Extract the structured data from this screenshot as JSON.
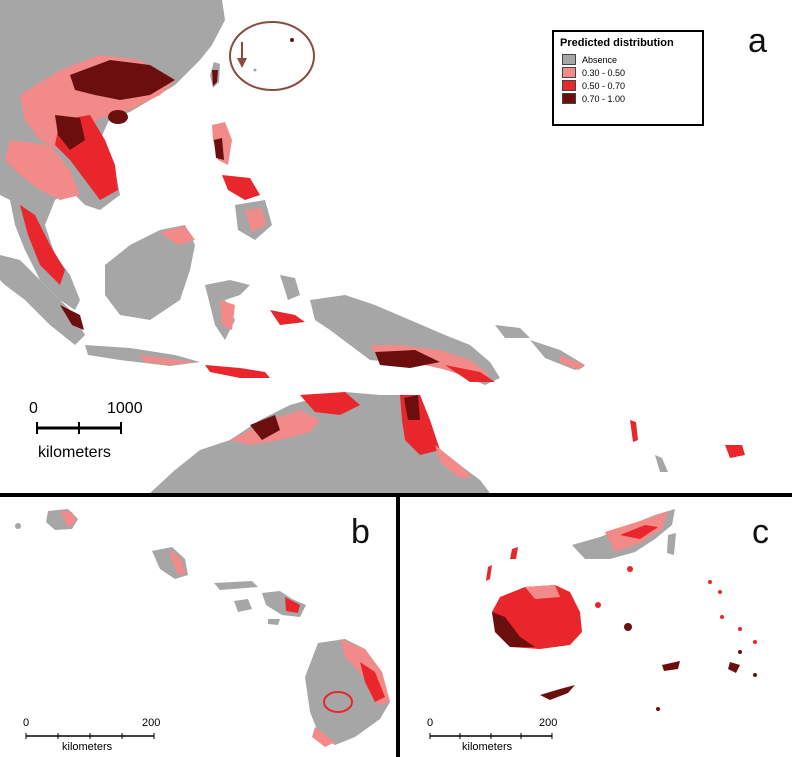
{
  "panels": {
    "a": {
      "letter": "a"
    },
    "b": {
      "letter": "b"
    },
    "c": {
      "letter": "c"
    }
  },
  "legend": {
    "title": "Predicted distribution",
    "items": [
      {
        "label": "Absence",
        "color": "#a6a6a6"
      },
      {
        "label": "0.30 - 0.50",
        "color": "#f28a8a"
      },
      {
        "label": "0.50 - 0.70",
        "color": "#e8262b"
      },
      {
        "label": "0.70 - 1.00",
        "color": "#6b0e0e"
      }
    ]
  },
  "scalebars": {
    "a": {
      "start": "0",
      "end": "1000",
      "unit": "kilometers"
    },
    "b": {
      "start": "0",
      "end": "200",
      "unit": "kilometers"
    },
    "c": {
      "start": "0",
      "end": "200",
      "unit": "kilometers"
    }
  },
  "colors": {
    "absence": "#a6a6a6",
    "low": "#f28a8a",
    "mid": "#e8262b",
    "high": "#6b0e0e",
    "circle": "#8b4a3c"
  }
}
